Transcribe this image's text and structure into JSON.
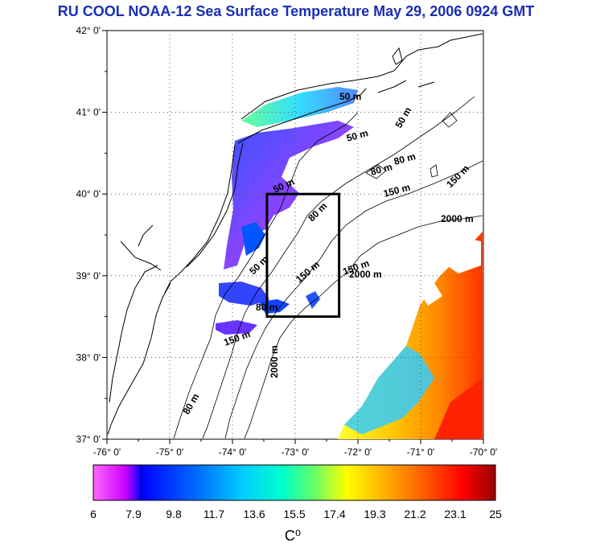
{
  "title": "RU COOL  NOAA-12 Sea Surface Temperature May 29, 2006 0924 GMT",
  "map": {
    "lat_labels": [
      "42° 0'",
      "41° 0'",
      "40° 0'",
      "39° 0'",
      "38° 0'",
      "37° 0'"
    ],
    "lon_labels": [
      "-76° 0'",
      "-75° 0'",
      "-74° 0'",
      "-73° 0'",
      "-72° 0'",
      "-71° 0'",
      "-70° 0'"
    ],
    "lat_range": [
      37,
      42
    ],
    "lon_range": [
      -76,
      -70
    ],
    "grid": "dotted",
    "study_box": {
      "lon": [
        -73.45,
        -72.3
      ],
      "lat": [
        38.5,
        40.0
      ]
    },
    "isobath_labels": [
      "50 m",
      "50 m",
      "50 m",
      "50 m",
      "80 m",
      "80 m",
      "80 m",
      "80 m",
      "150 m",
      "150 m",
      "150 m",
      "150 m",
      "150 m",
      "2000 m",
      "2000 m",
      "2000 m",
      "80 m",
      "50 m"
    ]
  },
  "colorbar": {
    "ticks": [
      "6",
      "7.9",
      "9.8",
      "11.7",
      "13.6",
      "15.5",
      "17.4",
      "19.3",
      "21.2",
      "23.1",
      "25"
    ],
    "unit": "C⁰",
    "colors": [
      "#ff66ff",
      "#cc00ff",
      "#0000ff",
      "#0066ff",
      "#00ccff",
      "#00ffcc",
      "#66ff66",
      "#ffff00",
      "#ffaa00",
      "#ff5500",
      "#ff0000",
      "#990000"
    ]
  }
}
